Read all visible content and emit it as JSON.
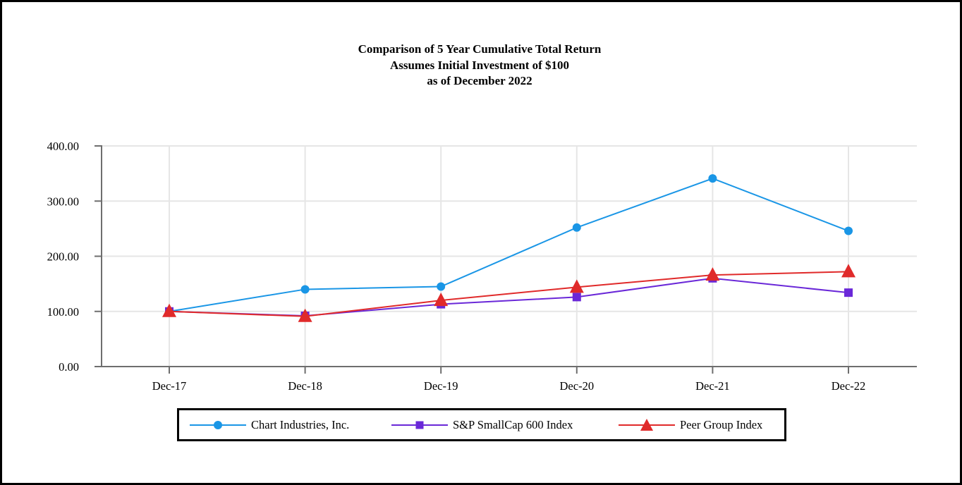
{
  "chart_data": {
    "type": "line",
    "title_lines": [
      "Comparison of 5 Year Cumulative Total Return",
      "Assumes Initial Investment of $100",
      "as of December 2022"
    ],
    "categories": [
      "Dec-17",
      "Dec-18",
      "Dec-19",
      "Dec-20",
      "Dec-21",
      "Dec-22"
    ],
    "ylim": [
      0,
      400
    ],
    "yticks": [
      0,
      100,
      200,
      300,
      400
    ],
    "ytick_labels": [
      "0.00",
      "100.00",
      "200.00",
      "300.00",
      "400.00"
    ],
    "grid": true,
    "legend_position": "bottom-center",
    "series": [
      {
        "name": "Chart Industries, Inc.",
        "color": "#1a96e6",
        "marker": "circle",
        "values": [
          100,
          140,
          145,
          252,
          341,
          246
        ]
      },
      {
        "name": "S&P SmallCap 600 Index",
        "color": "#6a28d8",
        "marker": "square",
        "values": [
          100,
          92,
          113,
          126,
          160,
          134
        ]
      },
      {
        "name": "Peer Group Index",
        "color": "#e02a2a",
        "marker": "triangle",
        "values": [
          100,
          91,
          120,
          144,
          166,
          172
        ]
      }
    ]
  }
}
